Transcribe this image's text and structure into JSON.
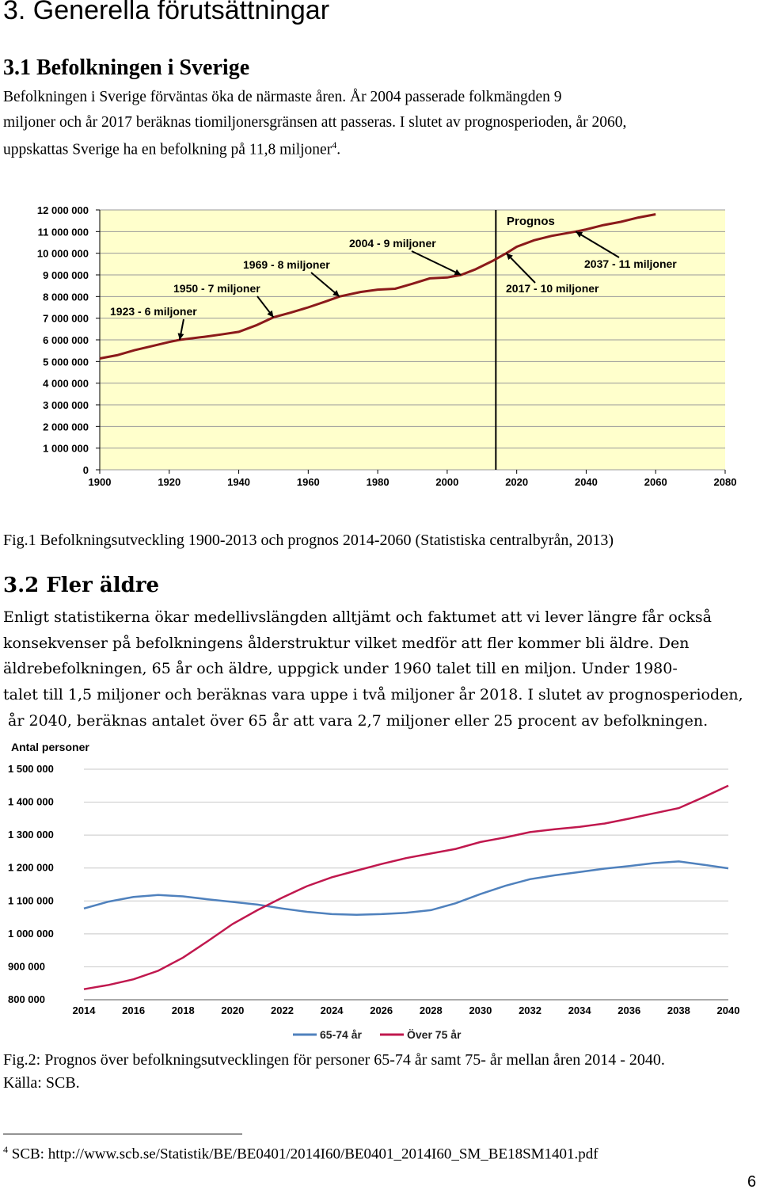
{
  "section_title": "3. Generella förutsättningar",
  "sub1": {
    "title": "3.1 Befolkningen i Sverige",
    "lines": [
      "Befolkningen i Sverige förväntas öka de närmaste åren. År 2004 passerade folkmängden 9",
      "miljoner och år 2017 beräknas tiomiljonersgränsen att passeras. I slutet av prognosperioden, år 2060,",
      "uppskattas Sverige ha en befolkning på 11,8 miljoner"
    ],
    "footnote_ref": "4",
    "end_punct": "."
  },
  "fig1_caption": "Fig.1 Befolkningsutveckling 1900-2013 och prognos 2014-2060  (Statistiska centralbyrån, 2013)",
  "sub2": {
    "title": "3.2 Fler äldre",
    "lines": [
      "Enligt statistikerna ökar medellivslängden alltjämt och faktumet att vi lever längre får också",
      "konsekvenser på befolkningens ålderstruktur vilket medför att fler kommer bli äldre. Den",
      "äldrebefolkningen, 65 år och äldre, uppgick under 1960 talet till en miljon. Under 1980-",
      "talet till 1,5 miljoner och beräknas vara uppe i två miljoner år 2018. I slutet av prognosperioden,",
      " år 2040, beräknas antalet över 65 år att vara 2,7 miljoner eller 25 procent av befolkningen."
    ]
  },
  "fig2_caption": [
    "Fig.2: Prognos över befolkningsutvecklingen för personer 65-74 år samt 75- år mellan åren 2014 - 2040.",
    "Källa: SCB."
  ],
  "footnote": {
    "num": "4",
    "text": " SCB: http://www.scb.se/Statistik/BE/BE0401/2014I60/BE0401_2014I60_SM_BE18SM1401.pdf"
  },
  "page_number": "6",
  "chart_data": [
    {
      "type": "line",
      "title": "",
      "ylim": [
        0,
        12000000
      ],
      "xlim": [
        1900,
        2080
      ],
      "y_ticks": [
        "12 000 000",
        "11 000 000",
        "10 000 000",
        "9 000 000",
        "8 000 000",
        "7 000 000",
        "6 000 000",
        "5 000 000",
        "4 000 000",
        "3 000 000",
        "2 000 000",
        "1 000 000",
        "0"
      ],
      "x_ticks": [
        "1900",
        "1920",
        "1940",
        "1960",
        "1980",
        "2000",
        "2020",
        "2040",
        "2060",
        "2080"
      ],
      "prognos_start": 2014,
      "grid": "horizontal",
      "background": "#FFFFCC",
      "line_color": "#8B1A1A",
      "series": [
        {
          "x": [
            1900,
            1905,
            1910,
            1915,
            1920,
            1923,
            1930,
            1935,
            1940,
            1945,
            1950,
            1955,
            1960,
            1965,
            1969,
            1975,
            1980,
            1985,
            1990,
            1995,
            2000,
            2004,
            2008,
            2013,
            2017,
            2020,
            2025,
            2030,
            2037,
            2040,
            2045,
            2050,
            2055,
            2060
          ],
          "y": [
            5140000,
            5290000,
            5520000,
            5710000,
            5900000,
            6000000,
            6140000,
            6250000,
            6370000,
            6670000,
            7040000,
            7260000,
            7500000,
            7770000,
            8000000,
            8210000,
            8320000,
            8360000,
            8590000,
            8840000,
            8880000,
            9000000,
            9250000,
            9640000,
            10000000,
            10300000,
            10600000,
            10800000,
            11000000,
            11100000,
            11300000,
            11450000,
            11650000,
            11800000
          ]
        }
      ],
      "annotations": [
        "Prognos",
        "1923 - 6 miljoner",
        "1950 - 7 miljoner",
        "1969 - 8 miljoner",
        "2004 - 9 miljoner",
        "2017 - 10 miljoner",
        "2037 - 11 miljoner"
      ]
    },
    {
      "type": "line",
      "ylabel": "Antal personer",
      "ylim": [
        800000,
        1500000
      ],
      "y_ticks": [
        "1 500 000",
        "1 400 000",
        "1 300 000",
        "1 200 000",
        "1 100 000",
        "1 000 000",
        "900 000",
        "800 000"
      ],
      "x_ticks": [
        "2014",
        "2016",
        "2018",
        "2020",
        "2022",
        "2024",
        "2026",
        "2028",
        "2030",
        "2032",
        "2034",
        "2036",
        "2038",
        "2040"
      ],
      "grid": "horizontal",
      "legend": "bottom",
      "x": [
        2014,
        2015,
        2016,
        2017,
        2018,
        2019,
        2020,
        2021,
        2022,
        2023,
        2024,
        2025,
        2026,
        2027,
        2028,
        2029,
        2030,
        2031,
        2032,
        2033,
        2034,
        2035,
        2036,
        2037,
        2038,
        2039,
        2040
      ],
      "series": [
        {
          "name": "65-74 år",
          "color": "#4F81BD",
          "values": [
            1077000,
            1098000,
            1112000,
            1118000,
            1114000,
            1105000,
            1097000,
            1089000,
            1077000,
            1067000,
            1060000,
            1058000,
            1060000,
            1064000,
            1072000,
            1093000,
            1121000,
            1146000,
            1166000,
            1178000,
            1188000,
            1198000,
            1206000,
            1215000,
            1220000,
            1210000,
            1199000
          ]
        },
        {
          "name": "Över 75 år",
          "color": "#C0184E",
          "values": [
            832000,
            845000,
            862000,
            888000,
            928000,
            978000,
            1030000,
            1072000,
            1110000,
            1145000,
            1172000,
            1192000,
            1212000,
            1230000,
            1244000,
            1258000,
            1279000,
            1293000,
            1309000,
            1318000,
            1325000,
            1335000,
            1350000,
            1366000,
            1382000,
            1415000,
            1450000
          ]
        }
      ]
    }
  ]
}
